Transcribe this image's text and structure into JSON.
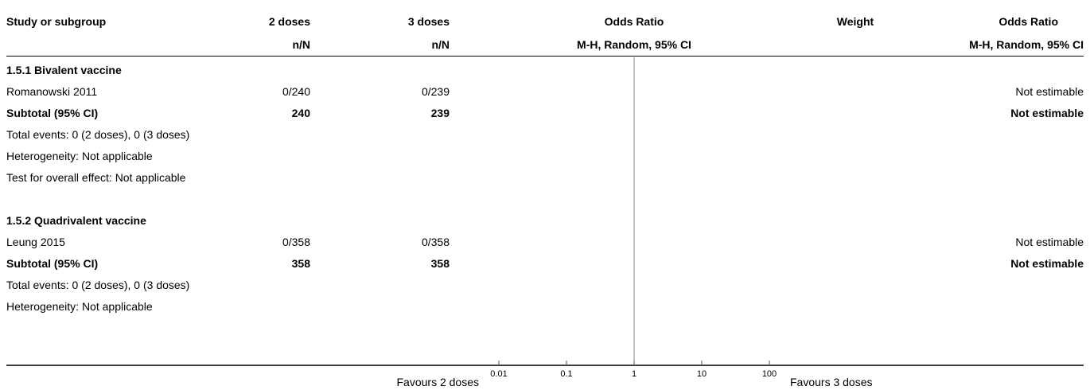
{
  "header": {
    "study_col": "Study or subgroup",
    "group1": "2 doses",
    "group2": "3 doses",
    "group1_sub": "n/N",
    "group2_sub": "n/N",
    "effect_title": "Odds Ratio",
    "effect_sub": "M-H, Random, 95% CI",
    "weight": "Weight",
    "effect_title2": "Odds Ratio",
    "effect_sub2": "M-H, Random, 95% CI"
  },
  "rows": [
    {
      "kind": "subgroup",
      "label": "1.5.1 Bivalent vaccine"
    },
    {
      "kind": "study",
      "label": "Romanowski 2011",
      "g1": "0/240",
      "g2": "0/239",
      "weight": "",
      "ci": "Not estimable"
    },
    {
      "kind": "subtotal",
      "label": "Subtotal (95% CI)",
      "g1": "240",
      "g2": "239",
      "weight": "",
      "ci": "Not estimable"
    },
    {
      "kind": "note",
      "label": "Total events: 0 (2 doses), 0 (3 doses)"
    },
    {
      "kind": "note",
      "label": "Heterogeneity: Not applicable"
    },
    {
      "kind": "note",
      "label": "Test for overall effect: Not applicable"
    },
    {
      "kind": "blank",
      "label": ""
    },
    {
      "kind": "subgroup",
      "label": "1.5.2 Quadrivalent vaccine"
    },
    {
      "kind": "study",
      "label": "Leung 2015",
      "g1": "0/358",
      "g2": "0/358",
      "weight": "",
      "ci": "Not estimable"
    },
    {
      "kind": "subtotal",
      "label": "Subtotal (95% CI)",
      "g1": "358",
      "g2": "358",
      "weight": "",
      "ci": "Not estimable"
    },
    {
      "kind": "note",
      "label": "Total events: 0 (2 doses), 0 (3 doses)"
    },
    {
      "kind": "note",
      "label": "Heterogeneity: Not applicable"
    }
  ],
  "footer": {
    "favours_left": "Favours 2 doses",
    "favours_right": "Favours 3 doses"
  },
  "chart_data": {
    "type": "scatter",
    "scale": "log",
    "xlim": [
      0.01,
      100
    ],
    "ticks": [
      "0.01",
      "0.1",
      "1",
      "10",
      "100"
    ],
    "tick_values": [
      0.01,
      0.1,
      1,
      10,
      100
    ],
    "null_line": 1,
    "points": []
  }
}
